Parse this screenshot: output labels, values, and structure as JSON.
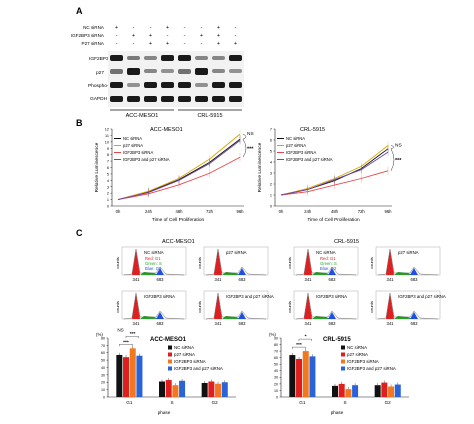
{
  "panel_a": {
    "label": "A",
    "rows": [
      "NC siRNA",
      "IGF2BP3 siRNA",
      "P27 siRNA"
    ],
    "signs": [
      [
        "+",
        "-",
        "-",
        "+",
        "-",
        "-",
        "+",
        "-"
      ],
      [
        "-",
        "+",
        "+",
        "-",
        "-",
        "+",
        "+",
        "-"
      ],
      [
        "-",
        "-",
        "+",
        "+",
        "-",
        "-",
        "+",
        "+"
      ]
    ],
    "blots": [
      "IGF2BP3",
      "p27",
      "Phospho-RB",
      "GAPDH"
    ],
    "cell_lines": [
      "ACC-MESO1",
      "CRL-5915"
    ]
  },
  "panel_b": {
    "label": "B",
    "ylabel": "Relative Luminescence",
    "xlabel": "Time of Cell Proliferation",
    "legend": [
      "NC siRNA",
      "p27 siRNA",
      "IGF2BP3 siRNA",
      "IGF2BP3 and p27 siRNA"
    ],
    "colors": [
      "#111111",
      "#d9a400",
      "#e8454a",
      "#6d4aa8"
    ],
    "charts": [
      {
        "title": "ACC-MESO1",
        "yticks": [
          "0",
          "1",
          "2",
          "3",
          "4",
          "5",
          "6",
          "7",
          "8",
          "9",
          "10",
          "11",
          "12"
        ],
        "ylim": [
          0,
          12
        ],
        "x": [
          "0h",
          "24h",
          "48h",
          "72h",
          "96h"
        ],
        "series": [
          {
            "name": "NC siRNA",
            "values": [
              1,
              2.2,
              4.1,
              6.8,
              10.4
            ]
          },
          {
            "name": "p27 siRNA",
            "values": [
              1,
              2.3,
              4.3,
              7.3,
              11.2
            ]
          },
          {
            "name": "IGF2BP3 siRNA",
            "values": [
              1,
              1.9,
              3.3,
              5.1,
              7.6
            ]
          },
          {
            "name": "IGF2BP3 and p27 siRNA",
            "values": [
              1,
              2.1,
              4.0,
              6.6,
              10.2
            ]
          }
        ],
        "annotations": [
          "NS",
          "***"
        ]
      },
      {
        "title": "CRL-5915",
        "yticks": [
          "0",
          "1",
          "2",
          "3",
          "4",
          "5",
          "6",
          "7"
        ],
        "ylim": [
          0,
          7
        ],
        "x": [
          "0h",
          "24h",
          "48h",
          "72h",
          "96h"
        ],
        "series": [
          {
            "name": "NC siRNA",
            "values": [
              1,
              1.5,
              2.3,
              3.4,
              5.2
            ]
          },
          {
            "name": "p27 siRNA",
            "values": [
              1,
              1.6,
              2.5,
              3.6,
              5.5
            ]
          },
          {
            "name": "IGF2BP3 siRNA",
            "values": [
              1,
              1.3,
              1.9,
              2.5,
              3.2
            ]
          },
          {
            "name": "IGF2BP3 and p27 siRNA",
            "values": [
              1,
              1.5,
              2.4,
              3.3,
              4.9
            ]
          }
        ],
        "annotations": [
          "NS",
          "***"
        ]
      }
    ]
  },
  "panel_c": {
    "label": "C",
    "cytometry": [
      {
        "title": "ACC-MESO1",
        "plots": [
          {
            "label": "NC siRNA"
          },
          {
            "label": "p27 siRNA"
          },
          {
            "label": "IGF2BP3 siRNA"
          },
          {
            "label": "IGF2BP3 and p27 siRNA"
          }
        ]
      },
      {
        "title": "CRL-5915",
        "plots": [
          {
            "label": "NC siRNA"
          },
          {
            "label": "p27 siRNA"
          },
          {
            "label": "IGF2BP3 siRNA"
          },
          {
            "label": "IGF2BP3 and p27 siRNA"
          }
        ]
      }
    ],
    "ylabel": "counts",
    "ticks": [
      "341",
      "683"
    ],
    "phase_key": [
      "Red: G1",
      "Green: S",
      "Blue: G2"
    ],
    "phase_key_colors": [
      "#e02020",
      "#2aa02a",
      "#2050e0"
    ],
    "bar_charts": [
      {
        "title": "ACC-MESO1",
        "unit": "(%)",
        "yticks": [
          "0",
          "10",
          "20",
          "30",
          "40",
          "50",
          "60",
          "70",
          "80"
        ],
        "ylim": [
          0,
          80
        ],
        "categories": [
          "G1",
          "S",
          "G2"
        ],
        "xlabel": "phase",
        "series": [
          {
            "name": "NC siRNA",
            "values": [
              57,
              21,
              19
            ]
          },
          {
            "name": "p27 siRNA",
            "values": [
              54,
              23,
              21
            ]
          },
          {
            "name": "IGF2BP3 siRNA",
            "values": [
              66,
              16,
              18
            ]
          },
          {
            "name": "IGF2BP3 and p27 siRNA",
            "values": [
              56,
              22,
              20
            ]
          }
        ],
        "annotations": [
          "NS",
          "***",
          "***"
        ]
      },
      {
        "title": "CRL-5915",
        "unit": "(%)",
        "yticks": [
          "0",
          "10",
          "20",
          "30",
          "40",
          "50",
          "60",
          "70",
          "80",
          "90"
        ],
        "ylim": [
          0,
          90
        ],
        "categories": [
          "G1",
          "S",
          "G2"
        ],
        "xlabel": "phase",
        "series": [
          {
            "name": "NC siRNA",
            "values": [
              64,
              17,
              18
            ]
          },
          {
            "name": "p27 siRNA",
            "values": [
              58,
              20,
              22
            ]
          },
          {
            "name": "IGF2BP3 siRNA",
            "values": [
              70,
              12,
              16
            ]
          },
          {
            "name": "IGF2BP3 and p27 siRNA",
            "values": [
              62,
              18,
              19
            ]
          }
        ],
        "annotations": [
          "***",
          "*"
        ]
      }
    ],
    "bar_colors": [
      "#111111",
      "#e01e1e",
      "#f07820",
      "#2a62d8"
    ]
  }
}
